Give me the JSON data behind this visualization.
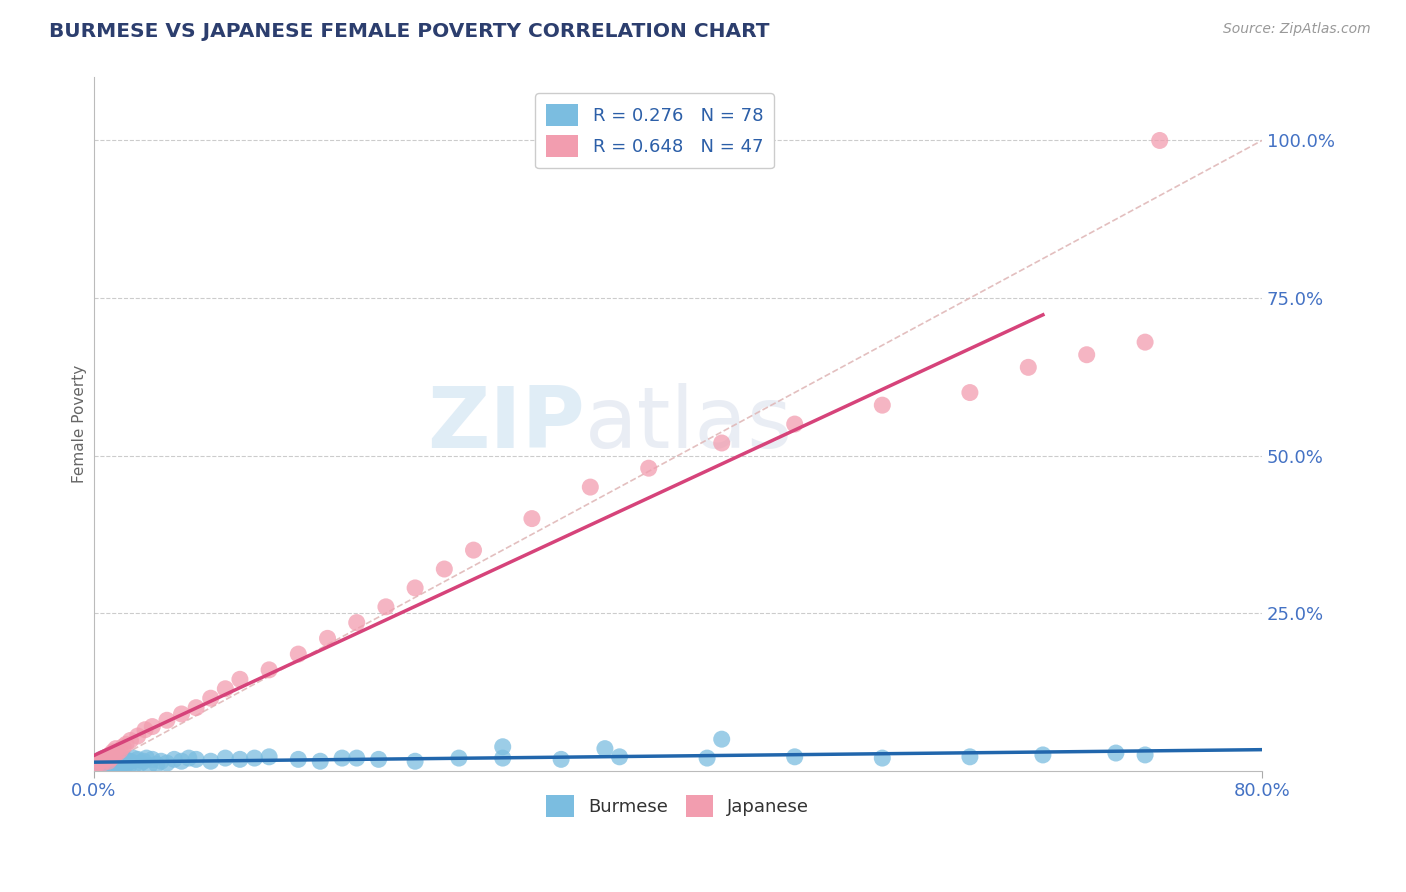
{
  "title": "BURMESE VS JAPANESE FEMALE POVERTY CORRELATION CHART",
  "source": "Source: ZipAtlas.com",
  "ylabel": "Female Poverty",
  "xlim": [
    0.0,
    0.8
  ],
  "ylim": [
    0.0,
    1.1
  ],
  "yticks": [
    0.0,
    0.25,
    0.5,
    0.75,
    1.0
  ],
  "ytick_labels": [
    "",
    "25.0%",
    "50.0%",
    "75.0%",
    "100.0%"
  ],
  "xticks": [
    0.0,
    0.8
  ],
  "xtick_labels": [
    "0.0%",
    "80.0%"
  ],
  "burmese_color": "#7bbde0",
  "japanese_color": "#f29daf",
  "burmese_line_color": "#2166ac",
  "japanese_line_color": "#d6437a",
  "diagonal_color": "#e0b8b8",
  "R_burmese": 0.276,
  "N_burmese": 78,
  "R_japanese": 0.648,
  "N_japanese": 47,
  "watermark_zip": "ZIP",
  "watermark_atlas": "atlas",
  "background_color": "#ffffff",
  "grid_color": "#cccccc",
  "burmese_x": [
    0.002,
    0.003,
    0.004,
    0.005,
    0.005,
    0.006,
    0.006,
    0.007,
    0.007,
    0.008,
    0.008,
    0.009,
    0.009,
    0.01,
    0.01,
    0.01,
    0.011,
    0.011,
    0.012,
    0.012,
    0.012,
    0.013,
    0.013,
    0.014,
    0.014,
    0.015,
    0.015,
    0.016,
    0.017,
    0.018,
    0.018,
    0.019,
    0.02,
    0.021,
    0.022,
    0.023,
    0.024,
    0.025,
    0.027,
    0.028,
    0.03,
    0.032,
    0.034,
    0.036,
    0.038,
    0.04,
    0.043,
    0.046,
    0.05,
    0.055,
    0.06,
    0.065,
    0.07,
    0.08,
    0.09,
    0.1,
    0.11,
    0.12,
    0.14,
    0.155,
    0.17,
    0.195,
    0.22,
    0.25,
    0.28,
    0.32,
    0.36,
    0.42,
    0.48,
    0.54,
    0.6,
    0.65,
    0.7,
    0.72,
    0.43,
    0.35,
    0.28,
    0.18
  ],
  "burmese_y": [
    0.01,
    0.015,
    0.008,
    0.012,
    0.018,
    0.006,
    0.01,
    0.014,
    0.02,
    0.008,
    0.015,
    0.01,
    0.018,
    0.005,
    0.012,
    0.022,
    0.008,
    0.015,
    0.006,
    0.012,
    0.02,
    0.01,
    0.018,
    0.007,
    0.015,
    0.005,
    0.012,
    0.018,
    0.01,
    0.015,
    0.022,
    0.008,
    0.012,
    0.018,
    0.01,
    0.016,
    0.008,
    0.015,
    0.02,
    0.01,
    0.018,
    0.012,
    0.015,
    0.02,
    0.008,
    0.018,
    0.01,
    0.015,
    0.012,
    0.018,
    0.015,
    0.02,
    0.018,
    0.015,
    0.02,
    0.018,
    0.02,
    0.022,
    0.018,
    0.015,
    0.02,
    0.018,
    0.015,
    0.02,
    0.02,
    0.018,
    0.022,
    0.02,
    0.022,
    0.02,
    0.022,
    0.025,
    0.028,
    0.025,
    0.05,
    0.035,
    0.038,
    0.02
  ],
  "japanese_x": [
    0.002,
    0.003,
    0.004,
    0.005,
    0.006,
    0.007,
    0.008,
    0.009,
    0.01,
    0.011,
    0.012,
    0.013,
    0.014,
    0.015,
    0.016,
    0.018,
    0.02,
    0.022,
    0.025,
    0.03,
    0.035,
    0.04,
    0.05,
    0.06,
    0.07,
    0.08,
    0.09,
    0.1,
    0.12,
    0.14,
    0.16,
    0.18,
    0.2,
    0.22,
    0.24,
    0.26,
    0.3,
    0.34,
    0.38,
    0.43,
    0.48,
    0.54,
    0.6,
    0.64,
    0.68,
    0.72,
    0.73
  ],
  "japanese_y": [
    0.01,
    0.012,
    0.015,
    0.018,
    0.012,
    0.02,
    0.018,
    0.022,
    0.015,
    0.025,
    0.02,
    0.03,
    0.025,
    0.035,
    0.028,
    0.032,
    0.038,
    0.042,
    0.048,
    0.055,
    0.065,
    0.07,
    0.08,
    0.09,
    0.1,
    0.115,
    0.13,
    0.145,
    0.16,
    0.185,
    0.21,
    0.235,
    0.26,
    0.29,
    0.32,
    0.35,
    0.4,
    0.45,
    0.48,
    0.52,
    0.55,
    0.58,
    0.6,
    0.64,
    0.66,
    0.68,
    1.0
  ]
}
